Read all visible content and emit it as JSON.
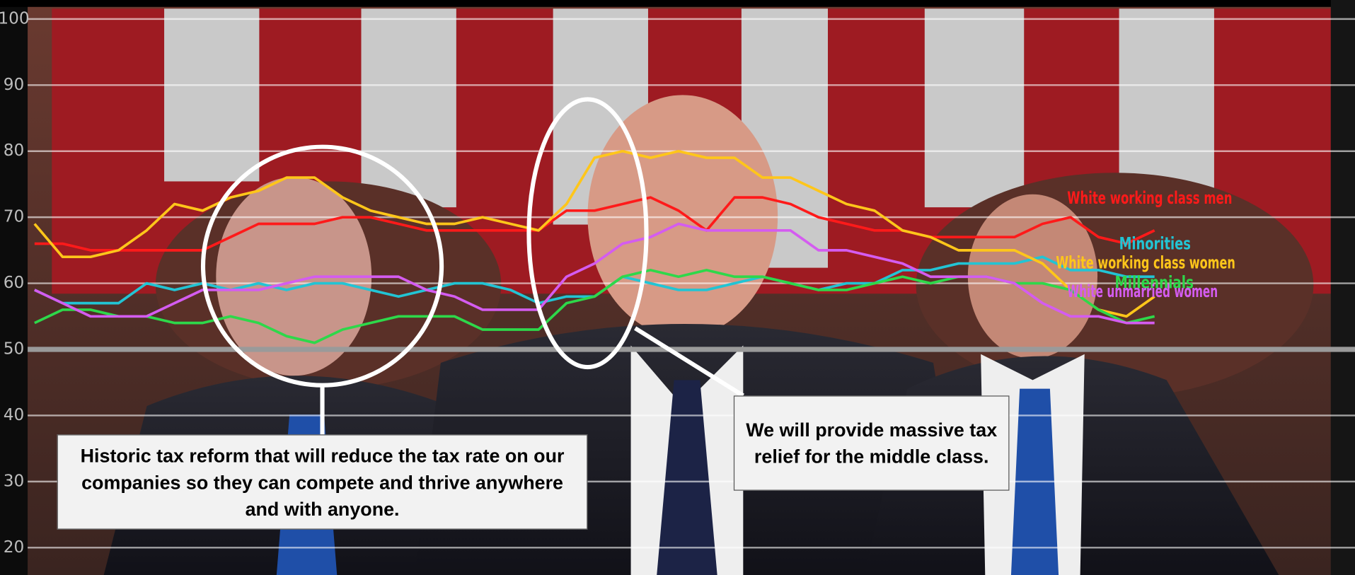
{
  "chart_data": {
    "type": "line",
    "ylim": [
      16,
      100
    ],
    "yticks": [
      20,
      30,
      40,
      50,
      60,
      70,
      80,
      90,
      100
    ],
    "grid": true,
    "series": [
      {
        "name": "White working class men",
        "color": "#ff1a1a",
        "values": [
          66,
          66,
          65,
          65,
          65,
          65,
          65,
          67,
          69,
          69,
          69,
          70,
          70,
          69,
          68,
          68,
          68,
          68,
          68,
          71,
          71,
          72,
          73,
          71,
          68,
          73,
          73,
          72,
          70,
          69,
          68,
          68,
          67,
          67,
          67,
          67,
          69,
          70,
          67,
          66,
          68
        ]
      },
      {
        "name": "Minorities",
        "color": "#22c4d4",
        "values": [
          59,
          57,
          57,
          57,
          60,
          59,
          60,
          59,
          60,
          59,
          60,
          60,
          59,
          58,
          59,
          60,
          60,
          59,
          57,
          58,
          58,
          61,
          60,
          59,
          59,
          60,
          61,
          60,
          59,
          60,
          60,
          62,
          62,
          63,
          63,
          63,
          64,
          62,
          62,
          61,
          61
        ]
      },
      {
        "name": "White working class women",
        "color": "#ffc61a",
        "values": [
          69,
          64,
          64,
          65,
          68,
          72,
          71,
          73,
          74,
          76,
          76,
          73,
          71,
          70,
          69,
          69,
          70,
          69,
          68,
          72,
          79,
          80,
          79,
          80,
          79,
          79,
          76,
          76,
          74,
          72,
          71,
          68,
          67,
          65,
          65,
          65,
          63,
          59,
          56,
          55,
          58
        ]
      },
      {
        "name": "Millennials",
        "color": "#2ed84a",
        "values": [
          54,
          56,
          56,
          55,
          55,
          54,
          54,
          55,
          54,
          52,
          51,
          53,
          54,
          55,
          55,
          55,
          53,
          53,
          53,
          57,
          58,
          61,
          62,
          61,
          62,
          61,
          61,
          60,
          59,
          59,
          60,
          61,
          60,
          61,
          61,
          60,
          60,
          59,
          56,
          54,
          55
        ]
      },
      {
        "name": "White unmarried women",
        "color": "#d45cf0",
        "values": [
          59,
          57,
          55,
          55,
          55,
          57,
          59,
          59,
          59,
          60,
          61,
          61,
          61,
          61,
          59,
          58,
          56,
          56,
          56,
          61,
          63,
          66,
          67,
          69,
          68,
          68,
          68,
          68,
          65,
          65,
          64,
          63,
          61,
          61,
          61,
          60,
          57,
          55,
          55,
          54,
          54
        ]
      }
    ],
    "annotations": [
      "Historic tax reform that will reduce the tax rate on our companies so they can compete and thrive anywhere and with anyone.",
      "We will provide massive tax relief for the middle class."
    ]
  }
}
